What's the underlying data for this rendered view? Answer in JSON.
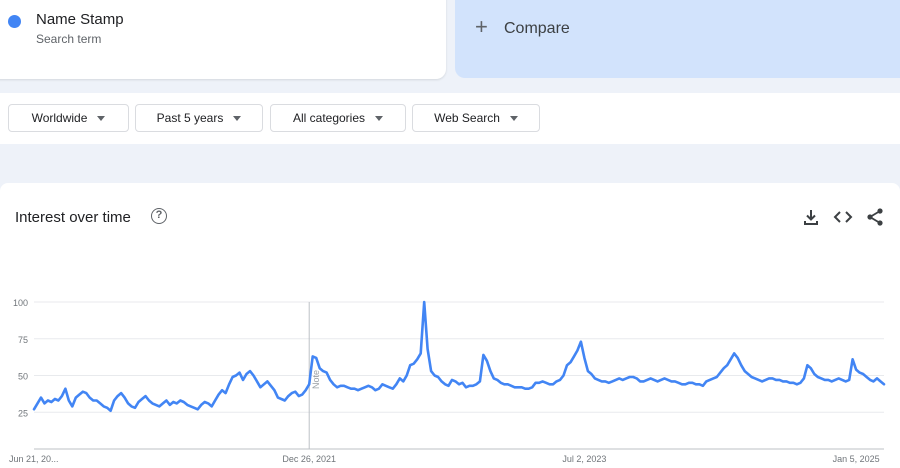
{
  "search_term": {
    "name": "Name Stamp",
    "subtitle": "Search term",
    "color": "#4285f4"
  },
  "compare": {
    "label": "Compare",
    "icon": "plus-icon"
  },
  "filters": [
    {
      "label": "Worldwide"
    },
    {
      "label": "Past 5 years"
    },
    {
      "label": "All categories"
    },
    {
      "label": "Web Search"
    }
  ],
  "panel": {
    "title": "Interest over time",
    "help_icon": "help-circle-icon",
    "actions": [
      "download-icon",
      "embed-code-icon",
      "share-icon"
    ]
  },
  "chart_data": {
    "type": "line",
    "title": "",
    "ylim": [
      0,
      100
    ],
    "y_ticks": [
      "100",
      "75",
      "50",
      "25"
    ],
    "x_ticks": [
      {
        "label": "Jun 21, 20...",
        "week": 0
      },
      {
        "label": "Dec 26, 2021",
        "week": 79
      },
      {
        "label": "Jul 2, 2023",
        "week": 158
      },
      {
        "label": "Jan 5, 2025",
        "week": 236
      }
    ],
    "note_label": "Note",
    "note_week": 79,
    "grid": true,
    "series": [
      {
        "color": "#4285f4",
        "values": [
          27,
          31,
          35,
          31,
          33,
          32,
          34,
          33,
          36,
          41,
          33,
          29,
          35,
          37,
          39,
          38,
          35,
          33,
          33,
          31,
          29,
          28,
          26,
          33,
          36,
          38,
          35,
          31,
          29,
          28,
          32,
          34,
          36,
          33,
          31,
          30,
          29,
          31,
          33,
          30,
          32,
          31,
          33,
          32,
          30,
          29,
          28,
          27,
          30,
          32,
          31,
          29,
          33,
          37,
          40,
          38,
          44,
          49,
          50,
          52,
          47,
          51,
          53,
          50,
          46,
          42,
          44,
          46,
          43,
          40,
          35,
          34,
          33,
          36,
          38,
          39,
          36,
          37,
          40,
          44,
          63,
          62,
          55,
          53,
          52,
          47,
          44,
          42,
          43,
          43,
          42,
          41,
          41,
          40,
          41,
          42,
          43,
          42,
          40,
          41,
          44,
          43,
          42,
          41,
          44,
          48,
          46,
          50,
          57,
          58,
          61,
          65,
          100,
          68,
          53,
          50,
          49,
          46,
          44,
          43,
          47,
          46,
          44,
          45,
          42,
          43,
          43,
          44,
          46,
          64,
          60,
          53,
          48,
          47,
          45,
          44,
          44,
          43,
          42,
          42,
          42,
          41,
          41,
          42,
          45,
          45,
          46,
          45,
          44,
          44,
          46,
          47,
          50,
          57,
          59,
          63,
          67,
          73,
          62,
          53,
          51,
          48,
          47,
          46,
          46,
          45,
          46,
          47,
          48,
          47,
          48,
          49,
          49,
          48,
          46,
          46,
          47,
          48,
          47,
          46,
          47,
          48,
          47,
          46,
          46,
          45,
          44,
          44,
          45,
          45,
          44,
          44,
          43,
          46,
          47,
          48,
          49,
          52,
          55,
          57,
          61,
          65,
          62,
          57,
          53,
          51,
          49,
          48,
          47,
          46,
          47,
          48,
          48,
          47,
          47,
          46,
          46,
          45,
          45,
          44,
          45,
          48,
          57,
          55,
          51,
          49,
          48,
          47,
          47,
          46,
          47,
          48,
          47,
          46,
          47,
          61,
          54,
          52,
          51,
          49,
          47,
          46,
          48,
          46,
          44
        ]
      }
    ]
  }
}
